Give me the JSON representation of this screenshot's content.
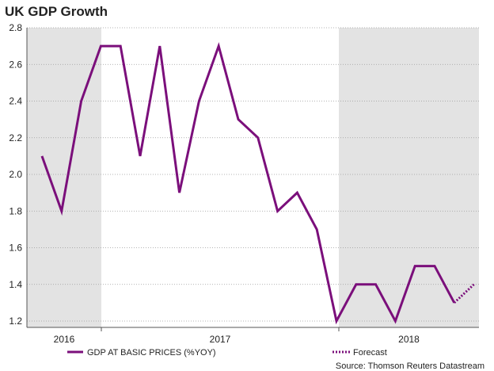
{
  "chart_data": {
    "type": "line",
    "title": "UK GDP Growth",
    "ylim": [
      1.2,
      2.8
    ],
    "yticks": [
      1.2,
      1.4,
      1.6,
      1.8,
      2.0,
      2.2,
      2.4,
      2.6,
      2.8
    ],
    "ytick_labels": [
      "1.2",
      "1.4",
      "1.6",
      "1.8",
      "2.0",
      "2.2",
      "2.4",
      "2.6",
      "2.8"
    ],
    "year_labels": [
      "2016",
      "2017",
      "2018"
    ],
    "shaded_years": [
      "2016",
      "2018"
    ],
    "n_points": 24,
    "series": [
      {
        "name": "GDP AT BASIC PRICES (%YOY)",
        "color": "#7b0f7b",
        "style": "solid",
        "values": [
          2.1,
          1.8,
          2.4,
          2.7,
          2.7,
          2.1,
          2.7,
          1.9,
          2.4,
          2.7,
          2.3,
          2.2,
          1.8,
          1.9,
          1.7,
          1.2,
          1.4,
          1.4,
          1.2,
          1.5,
          1.5,
          1.3
        ]
      },
      {
        "name": "Forecast",
        "color": "#7b0f7b",
        "style": "dotted",
        "start_index": 21,
        "values": [
          1.3,
          1.4
        ]
      }
    ],
    "shade_color": "#e3e3e3",
    "grid": true,
    "source": "Source: Thomson Reuters Datastream"
  }
}
